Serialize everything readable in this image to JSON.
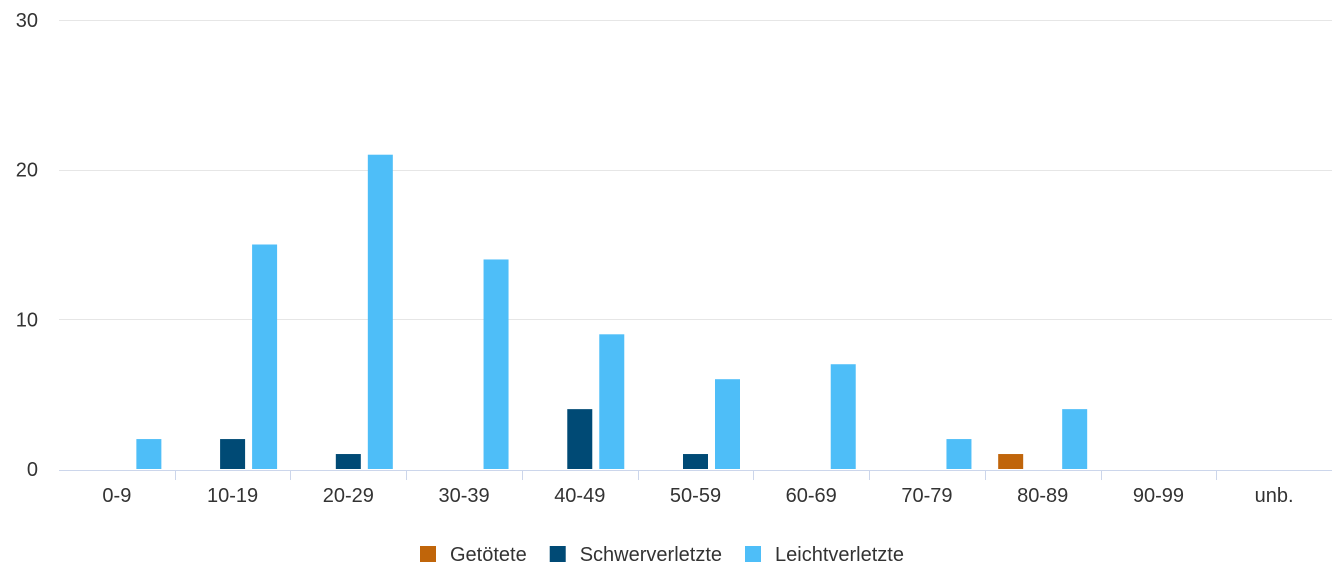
{
  "chart_data": {
    "type": "bar",
    "title": "",
    "xlabel": "",
    "ylabel": "",
    "categories": [
      "0-9",
      "10-19",
      "20-29",
      "30-39",
      "40-49",
      "50-59",
      "60-69",
      "70-79",
      "80-89",
      "90-99",
      "unb."
    ],
    "series": [
      {
        "name": "Getötete",
        "color": "#c0650a",
        "values": [
          0,
          0,
          0,
          0,
          0,
          0,
          0,
          0,
          1,
          0,
          0
        ]
      },
      {
        "name": "Schwerverletzte",
        "color": "#004a75",
        "values": [
          0,
          2,
          1,
          0,
          4,
          1,
          0,
          0,
          0,
          0,
          0
        ]
      },
      {
        "name": "Leichtverletzte",
        "color": "#4ebef8",
        "values": [
          2,
          15,
          21,
          14,
          9,
          6,
          7,
          2,
          4,
          0,
          0
        ]
      }
    ],
    "ylim": [
      0,
      30
    ],
    "yticks": [
      0,
      10,
      20,
      30
    ],
    "grid": true,
    "legend_position": "bottom-center"
  }
}
